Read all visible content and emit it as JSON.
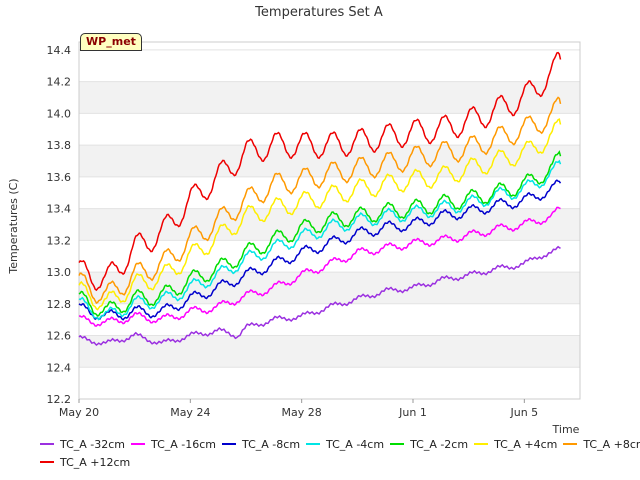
{
  "chart_data": {
    "type": "line",
    "title": "Temperatures Set A",
    "xlabel": "Time",
    "ylabel": "Temperatures (C)",
    "badge": "WP_met",
    "x_tick_labels": [
      "May 20",
      "May 24",
      "May 28",
      "Jun 1",
      "Jun 5"
    ],
    "x_tick_days": [
      0,
      4,
      8,
      12,
      16
    ],
    "xlim_days": [
      0,
      18
    ],
    "ylim": [
      12.2,
      14.45
    ],
    "y_ticks": [
      12.2,
      12.4,
      12.6,
      12.8,
      13.0,
      13.2,
      13.4,
      13.6,
      13.8,
      14.0,
      14.2,
      14.4
    ],
    "y_tick_labels": [
      "12.2",
      "12.4",
      "12.6",
      "12.8",
      "13.0",
      "13.2",
      "13.4",
      "13.6",
      "13.8",
      "14.0",
      "14.2",
      "14.4"
    ],
    "grid": true,
    "legend_placement": "bottom",
    "series": [
      {
        "name": "TC_A -32cm",
        "color": "#9b30e0",
        "x": [
          0,
          1,
          2,
          3,
          4,
          5,
          5.7,
          6,
          7,
          8,
          9,
          10,
          11,
          12,
          13,
          14,
          15,
          16,
          16.5,
          17,
          17.3
        ],
        "y": [
          12.58,
          12.55,
          12.6,
          12.55,
          12.6,
          12.63,
          12.6,
          12.65,
          12.7,
          12.72,
          12.78,
          12.83,
          12.88,
          12.9,
          12.95,
          12.98,
          13.02,
          13.05,
          13.1,
          13.12,
          13.15
        ]
      },
      {
        "name": "TC_A -16cm",
        "color": "#ff00ff",
        "x": [
          0,
          1,
          2,
          3,
          4,
          5,
          6,
          7,
          8,
          9,
          10,
          11,
          12,
          13,
          14,
          15,
          16,
          17,
          17.3
        ],
        "y": [
          12.7,
          12.68,
          12.72,
          12.7,
          12.75,
          12.78,
          12.85,
          12.9,
          12.98,
          13.05,
          13.12,
          13.15,
          13.18,
          13.2,
          13.23,
          13.27,
          13.3,
          13.35,
          13.4
        ]
      },
      {
        "name": "TC_A -8cm",
        "color": "#0000cc",
        "x": [
          0,
          1,
          2,
          3,
          4,
          5,
          6,
          7,
          8,
          9,
          10,
          11,
          12,
          13,
          14,
          15,
          16,
          17,
          17.3
        ],
        "y": [
          12.77,
          12.72,
          12.75,
          12.75,
          12.83,
          12.9,
          12.98,
          13.05,
          13.12,
          13.18,
          13.24,
          13.28,
          13.3,
          13.35,
          13.38,
          13.42,
          13.45,
          13.52,
          13.56
        ]
      },
      {
        "name": "TC_A -4cm",
        "color": "#00e5e5",
        "x": [
          0,
          1,
          2,
          3,
          4,
          5,
          6,
          7,
          8,
          9,
          10,
          11,
          12,
          13,
          14,
          15,
          16,
          17,
          17.3
        ],
        "y": [
          12.8,
          12.72,
          12.8,
          12.82,
          12.9,
          12.98,
          13.08,
          13.15,
          13.22,
          13.28,
          13.32,
          13.35,
          13.37,
          13.4,
          13.43,
          13.48,
          13.52,
          13.62,
          13.68
        ]
      },
      {
        "name": "TC_A -2cm",
        "color": "#00dd00",
        "x": [
          0,
          1,
          2,
          3,
          4,
          5,
          6,
          7,
          8,
          9,
          10,
          11,
          12,
          13,
          14,
          15,
          16,
          17,
          17.3
        ],
        "y": [
          12.83,
          12.75,
          12.83,
          12.85,
          12.95,
          13.02,
          13.12,
          13.2,
          13.27,
          13.32,
          13.35,
          13.38,
          13.4,
          13.43,
          13.46,
          13.5,
          13.55,
          13.65,
          13.73
        ]
      },
      {
        "name": "TC_A +4cm",
        "color": "#ffee00",
        "x": [
          0,
          1,
          2,
          3,
          4,
          5,
          6,
          7,
          8,
          9,
          10,
          11,
          12,
          13,
          14,
          15,
          16,
          17,
          17.3
        ],
        "y": [
          12.88,
          12.8,
          12.92,
          12.97,
          13.1,
          13.22,
          13.35,
          13.4,
          13.44,
          13.48,
          13.52,
          13.55,
          13.58,
          13.6,
          13.65,
          13.7,
          13.75,
          13.85,
          13.93
        ]
      },
      {
        "name": "TC_A +8cm",
        "color": "#ff9900",
        "x": [
          0,
          1,
          2,
          3,
          4,
          5,
          6,
          7,
          8,
          9,
          10,
          11,
          12,
          13,
          14,
          15,
          16,
          17,
          17.3
        ],
        "y": [
          12.93,
          12.85,
          12.98,
          13.05,
          13.2,
          13.32,
          13.45,
          13.55,
          13.58,
          13.62,
          13.65,
          13.68,
          13.72,
          13.75,
          13.78,
          13.84,
          13.9,
          13.98,
          14.06
        ]
      },
      {
        "name": "TC_A +12cm",
        "color": "#ee0000",
        "x": [
          0,
          1,
          2,
          3,
          4,
          5,
          6,
          7,
          8,
          9,
          10,
          11,
          12,
          13,
          14,
          15,
          16,
          17,
          17.3
        ],
        "y": [
          13.0,
          12.95,
          13.15,
          13.25,
          13.45,
          13.6,
          13.75,
          13.8,
          13.8,
          13.8,
          13.82,
          13.85,
          13.88,
          13.9,
          13.95,
          14.02,
          14.1,
          14.25,
          14.34
        ]
      }
    ]
  }
}
